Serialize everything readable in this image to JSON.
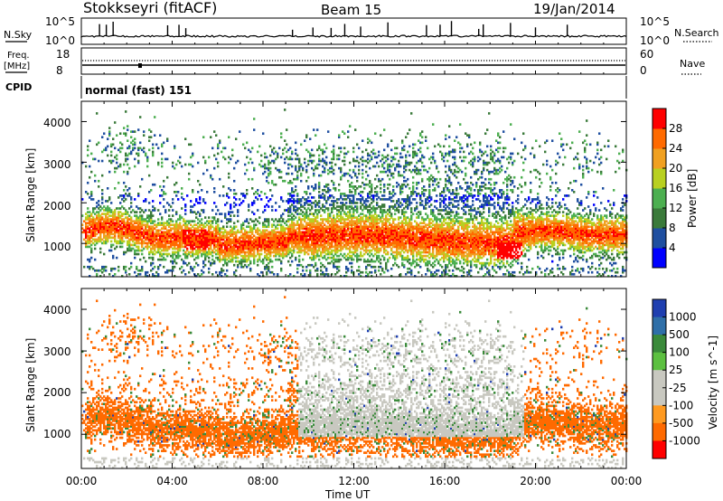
{
  "header": {
    "station": "Stokkseyri (fitACF)",
    "beam": "Beam 15",
    "date": "19/Jan/2014"
  },
  "summary": {
    "nsky_label": "N.Sky",
    "nsearch_label": "N.Search",
    "nsky_ticks": [
      "10^5",
      "10^0"
    ],
    "nsearch_ticks": [
      "10^5",
      "10^0"
    ],
    "freq_label_1": "Freq.",
    "freq_label_2": "[MHz]",
    "freq_ticks": [
      "18",
      "8"
    ],
    "nave_label": "Nave",
    "nave_ticks": [
      "60",
      "0"
    ],
    "cpid_label": "CPID",
    "cpid_value": "normal (fast) 151"
  },
  "chart_data": [
    {
      "type": "heatmap",
      "title": "",
      "xlabel": "",
      "ylabel": "Slant Range [km]",
      "xlim": [
        "00:00",
        "24:00"
      ],
      "ylim": [
        180,
        4500
      ],
      "yticks": [
        "1000",
        "2000",
        "3000",
        "4000"
      ],
      "colorbar": {
        "label": "Power [dB]",
        "ticks": [
          "28",
          "24",
          "20",
          "16",
          "12",
          "8",
          "4"
        ],
        "colors": [
          "#0000ff",
          "#1f4fa0",
          "#3a7a3a",
          "#4caf50",
          "#b8d020",
          "#f0a020",
          "#ff6a00",
          "#ff0000"
        ]
      },
      "grid": false
    },
    {
      "type": "heatmap",
      "title": "",
      "xlabel": "Time UT",
      "ylabel": "Slant Range [km]",
      "xlim": [
        "00:00",
        "24:00"
      ],
      "ylim": [
        180,
        4500
      ],
      "xticks": [
        "00:00",
        "04:00",
        "08:00",
        "12:00",
        "16:00",
        "20:00",
        "00:00"
      ],
      "yticks": [
        "1000",
        "2000",
        "3000",
        "4000"
      ],
      "colorbar": {
        "label": "Velocity [m s^-1]",
        "ticks": [
          "1000",
          "500",
          "100",
          "25",
          "-25",
          "-100",
          "-500",
          "-1000"
        ],
        "colors": [
          "#1f3fb0",
          "#2f6fa8",
          "#3a8a3a",
          "#5cc040",
          "#c8c8c0",
          "#c8c8c0",
          "#ff9a20",
          "#ff6a00",
          "#ff0000"
        ]
      },
      "grid": false
    }
  ]
}
